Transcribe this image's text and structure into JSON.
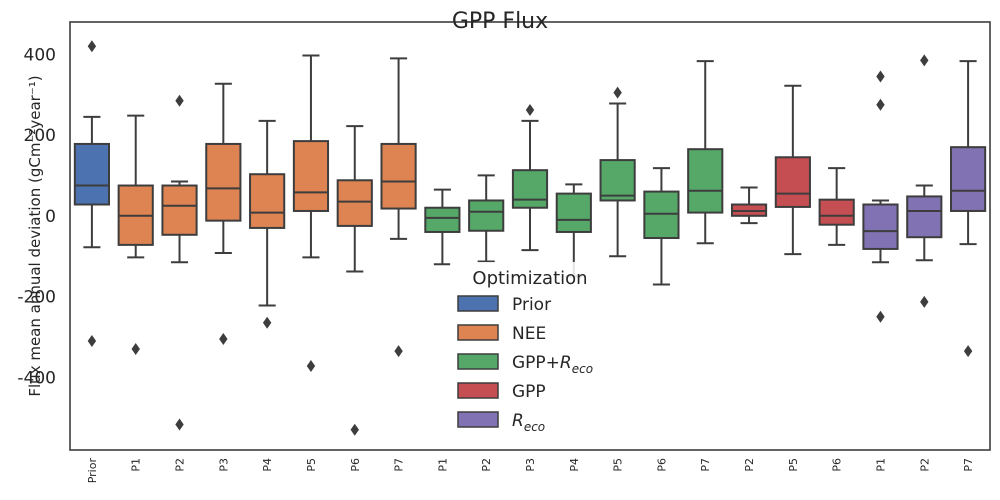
{
  "chart_data": {
    "type": "box",
    "title": "GPP Flux",
    "ylabel": "Flux mean annual deviation (gCm⁻²year⁻¹)",
    "ylim": [
      -580,
      480
    ],
    "yticks": [
      400,
      200,
      0,
      -200,
      -400
    ],
    "grid": false,
    "legend": {
      "title": "Optimization",
      "placement": "lower-center",
      "entries": [
        {
          "label": "Prior",
          "color": "#4c72b0"
        },
        {
          "label": "NEE",
          "color": "#dd8452"
        },
        {
          "label": "GPP+R_eco",
          "color": "#55a868"
        },
        {
          "label": "GPP",
          "color": "#c44e52"
        },
        {
          "label": "R_eco",
          "color": "#8172b3"
        }
      ]
    },
    "boxes": [
      {
        "label": "Prior",
        "group": "Prior",
        "q1": 28,
        "median": 75,
        "q3": 178,
        "whisker_low": -78,
        "whisker_high": 245,
        "fliers": [
          420,
          -310
        ]
      },
      {
        "label": "P1",
        "group": "NEE",
        "q1": -72,
        "median": 0,
        "q3": 75,
        "whisker_low": -103,
        "whisker_high": 248,
        "fliers": [
          -330
        ]
      },
      {
        "label": "P2",
        "group": "NEE",
        "q1": -47,
        "median": 25,
        "q3": 75,
        "whisker_low": -115,
        "whisker_high": 85,
        "fliers": [
          285,
          -517
        ]
      },
      {
        "label": "P3",
        "group": "NEE",
        "q1": -12,
        "median": 68,
        "q3": 178,
        "whisker_low": -92,
        "whisker_high": 327,
        "fliers": [
          -305
        ]
      },
      {
        "label": "P4",
        "group": "NEE",
        "q1": -30,
        "median": 8,
        "q3": 103,
        "whisker_low": -222,
        "whisker_high": 235,
        "fliers": [
          -265
        ]
      },
      {
        "label": "P5",
        "group": "NEE",
        "q1": 12,
        "median": 58,
        "q3": 185,
        "whisker_low": -103,
        "whisker_high": 397,
        "fliers": [
          -372
        ]
      },
      {
        "label": "P6",
        "group": "NEE",
        "q1": -25,
        "median": 35,
        "q3": 88,
        "whisker_low": -138,
        "whisker_high": 222,
        "fliers": [
          -530
        ]
      },
      {
        "label": "P7",
        "group": "NEE",
        "q1": 18,
        "median": 85,
        "q3": 178,
        "whisker_low": -57,
        "whisker_high": 390,
        "fliers": [
          -335
        ]
      },
      {
        "label": "P1",
        "group": "GPP+R_eco",
        "q1": -40,
        "median": -5,
        "q3": 20,
        "whisker_low": -120,
        "whisker_high": 65,
        "fliers": []
      },
      {
        "label": "P2",
        "group": "GPP+R_eco",
        "q1": -37,
        "median": 10,
        "q3": 38,
        "whisker_low": -113,
        "whisker_high": 100,
        "fliers": []
      },
      {
        "label": "P3",
        "group": "GPP+R_eco",
        "q1": 20,
        "median": 40,
        "q3": 113,
        "whisker_low": -85,
        "whisker_high": 235,
        "fliers": [
          262
        ]
      },
      {
        "label": "P4",
        "group": "GPP+R_eco",
        "q1": -40,
        "median": -10,
        "q3": 55,
        "whisker_low": -150,
        "whisker_high": 78,
        "fliers": []
      },
      {
        "label": "P5",
        "group": "GPP+R_eco",
        "q1": 38,
        "median": 50,
        "q3": 138,
        "whisker_low": -100,
        "whisker_high": 278,
        "fliers": [
          305
        ]
      },
      {
        "label": "P6",
        "group": "GPP+R_eco",
        "q1": -55,
        "median": 5,
        "q3": 60,
        "whisker_low": -170,
        "whisker_high": 118,
        "fliers": []
      },
      {
        "label": "P7",
        "group": "GPP+R_eco",
        "q1": 8,
        "median": 62,
        "q3": 165,
        "whisker_low": -68,
        "whisker_high": 383,
        "fliers": []
      },
      {
        "label": "P2",
        "group": "GPP",
        "q1": 0,
        "median": 12,
        "q3": 28,
        "whisker_low": -18,
        "whisker_high": 70,
        "fliers": []
      },
      {
        "label": "P5",
        "group": "GPP",
        "q1": 22,
        "median": 55,
        "q3": 145,
        "whisker_low": -95,
        "whisker_high": 322,
        "fliers": []
      },
      {
        "label": "P6",
        "group": "GPP",
        "q1": -22,
        "median": 0,
        "q3": 40,
        "whisker_low": -72,
        "whisker_high": 118,
        "fliers": []
      },
      {
        "label": "P1",
        "group": "R_eco",
        "q1": -82,
        "median": -38,
        "q3": 28,
        "whisker_low": -115,
        "whisker_high": 38,
        "fliers": [
          345,
          275,
          -250
        ]
      },
      {
        "label": "P2",
        "group": "R_eco",
        "q1": -53,
        "median": 12,
        "q3": 48,
        "whisker_low": -110,
        "whisker_high": 75,
        "fliers": [
          385,
          -213
        ]
      },
      {
        "label": "P7",
        "group": "R_eco",
        "q1": 12,
        "median": 62,
        "q3": 170,
        "whisker_low": -70,
        "whisker_high": 383,
        "fliers": [
          -335
        ]
      }
    ]
  }
}
